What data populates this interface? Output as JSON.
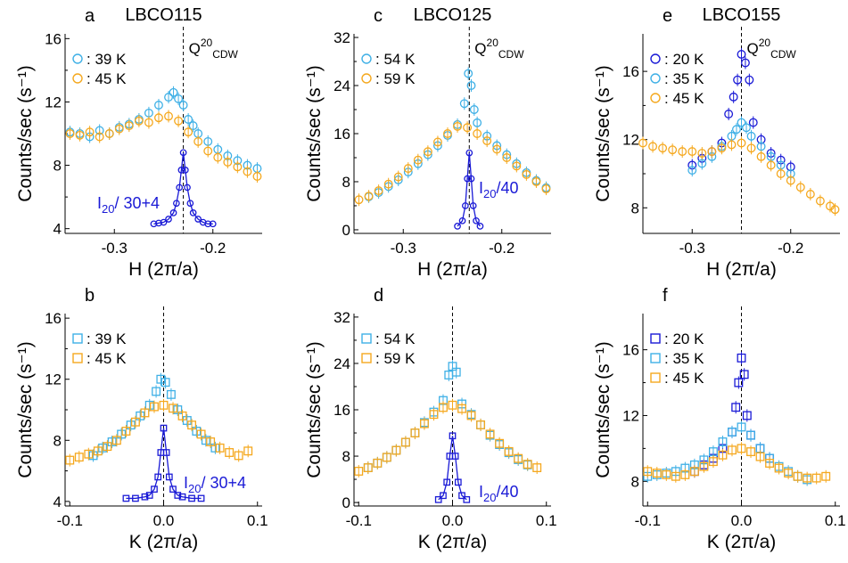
{
  "figure": {
    "panel_letters": [
      "a",
      "b",
      "c",
      "d",
      "e",
      "f"
    ]
  },
  "chart_data": [
    {
      "panel": "a",
      "type": "scatter",
      "title": "LBCO115",
      "xlabel": "H (2π/a)",
      "ylabel": "Counts/sec (s⁻¹)",
      "xlim": [
        -0.35,
        -0.15
      ],
      "ylim": [
        3.7,
        16.3
      ],
      "xticks": [
        -0.3,
        -0.2
      ],
      "xtick_labels": [
        "-0.3",
        "-0.2"
      ],
      "yticks": [
        4,
        8,
        12,
        16
      ],
      "marker": "circle",
      "vline": -0.23,
      "vline_label": "Q20 CDW",
      "fit_label": "I20/ 30+4",
      "series": [
        {
          "name": ": 39 K",
          "color": "#3fb0e6",
          "x": [
            -0.345,
            -0.335,
            -0.325,
            -0.315,
            -0.305,
            -0.295,
            -0.285,
            -0.275,
            -0.265,
            -0.255,
            -0.245,
            -0.24,
            -0.235,
            -0.23,
            -0.225,
            -0.22,
            -0.215,
            -0.205,
            -0.195,
            -0.185,
            -0.175,
            -0.165,
            -0.155
          ],
          "y": [
            10.1,
            10.0,
            9.8,
            10.2,
            10.0,
            10.4,
            10.6,
            10.9,
            11.3,
            11.8,
            12.3,
            12.6,
            12.2,
            11.8,
            10.9,
            10.5,
            10.0,
            9.5,
            9.0,
            8.6,
            8.3,
            8.0,
            7.8
          ]
        },
        {
          "name": ": 45 K",
          "color": "#f5a81e",
          "x": [
            -0.345,
            -0.335,
            -0.325,
            -0.315,
            -0.305,
            -0.295,
            -0.285,
            -0.275,
            -0.265,
            -0.255,
            -0.245,
            -0.235,
            -0.225,
            -0.215,
            -0.205,
            -0.195,
            -0.185,
            -0.175,
            -0.165,
            -0.155
          ],
          "y": [
            10.0,
            9.9,
            10.1,
            9.8,
            10.0,
            10.3,
            10.5,
            10.8,
            10.7,
            11.0,
            11.1,
            10.8,
            10.1,
            9.5,
            8.9,
            8.5,
            8.2,
            7.9,
            7.6,
            7.3
          ]
        },
        {
          "name": "I20/ 30+4",
          "color": "#1a1ad6",
          "x": [
            -0.26,
            -0.255,
            -0.25,
            -0.245,
            -0.24,
            -0.237,
            -0.234,
            -0.232,
            -0.23,
            -0.228,
            -0.226,
            -0.223,
            -0.22,
            -0.215,
            -0.21,
            -0.205,
            -0.2
          ],
          "y": [
            4.3,
            4.35,
            4.4,
            4.6,
            5.0,
            5.6,
            6.6,
            7.7,
            8.8,
            7.7,
            6.6,
            5.6,
            5.0,
            4.6,
            4.4,
            4.3,
            4.3
          ]
        }
      ]
    },
    {
      "panel": "b",
      "type": "scatter",
      "title": "",
      "xlabel": "K (2π/a)",
      "ylabel": "Counts/sec (s⁻¹)",
      "xlim": [
        -0.105,
        0.105
      ],
      "ylim": [
        3.7,
        16.3
      ],
      "xticks": [
        -0.1,
        0.0,
        0.1
      ],
      "xtick_labels": [
        "-0.1",
        "0.0",
        "0.1"
      ],
      "yticks": [
        4,
        8,
        12,
        16
      ],
      "marker": "square",
      "vline": 0.0,
      "vline_label": "",
      "fit_label": "I20/ 30+4",
      "series": [
        {
          "name": ": 39 K",
          "color": "#3fb0e6",
          "x": [
            -0.075,
            -0.065,
            -0.055,
            -0.045,
            -0.035,
            -0.025,
            -0.015,
            -0.008,
            -0.003,
            0.002,
            0.008,
            0.015,
            0.025,
            0.035,
            0.045,
            0.055
          ],
          "y": [
            7.0,
            7.5,
            7.9,
            8.4,
            9.0,
            9.6,
            10.3,
            11.2,
            12.0,
            11.8,
            11.0,
            10.0,
            9.3,
            8.6,
            8.0,
            7.5
          ]
        },
        {
          "name": ": 45 K",
          "color": "#f5a81e",
          "x": [
            -0.1,
            -0.09,
            -0.08,
            -0.07,
            -0.06,
            -0.05,
            -0.04,
            -0.03,
            -0.02,
            -0.01,
            0.0,
            0.01,
            0.02,
            0.03,
            0.04,
            0.05,
            0.06,
            0.07,
            0.08,
            0.09
          ],
          "y": [
            6.7,
            6.9,
            7.1,
            7.3,
            7.6,
            8.0,
            8.6,
            9.2,
            9.8,
            10.2,
            10.3,
            10.1,
            9.6,
            9.0,
            8.4,
            7.9,
            7.5,
            7.2,
            7.0,
            7.3
          ]
        },
        {
          "name": "I20/ 30+4",
          "color": "#1a1ad6",
          "x": [
            -0.04,
            -0.03,
            -0.02,
            -0.015,
            -0.01,
            -0.006,
            -0.003,
            0.0,
            0.003,
            0.006,
            0.01,
            0.015,
            0.02,
            0.03,
            0.04
          ],
          "y": [
            4.2,
            4.2,
            4.3,
            4.4,
            4.8,
            5.6,
            7.2,
            8.8,
            7.2,
            5.6,
            4.8,
            4.4,
            4.3,
            4.2,
            4.2
          ]
        }
      ]
    },
    {
      "panel": "c",
      "type": "scatter",
      "title": "LBCO125",
      "xlabel": "H (2π/a)",
      "ylabel": "Counts/sec (s⁻¹)",
      "xlim": [
        -0.35,
        -0.15
      ],
      "ylim": [
        -0.6,
        32.6
      ],
      "xticks": [
        -0.3,
        -0.2
      ],
      "xtick_labels": [
        "-0.3",
        "-0.2"
      ],
      "yticks": [
        0,
        8,
        16,
        24,
        32
      ],
      "marker": "circle",
      "vline": -0.233,
      "vline_label": "Q20 CDW",
      "fit_label": "I20/40",
      "series": [
        {
          "name": ": 54 K",
          "color": "#3fb0e6",
          "x": [
            -0.335,
            -0.325,
            -0.315,
            -0.305,
            -0.295,
            -0.285,
            -0.275,
            -0.265,
            -0.255,
            -0.245,
            -0.238,
            -0.234,
            -0.231,
            -0.228,
            -0.225,
            -0.215,
            -0.205,
            -0.195,
            -0.185,
            -0.175,
            -0.165,
            -0.155
          ],
          "y": [
            5.5,
            6.2,
            7.2,
            8.3,
            9.6,
            11.0,
            12.5,
            14.0,
            15.7,
            17.5,
            21.0,
            26.0,
            24.0,
            20.0,
            17.8,
            15.6,
            14.0,
            12.5,
            11.0,
            9.5,
            8.2,
            7.0
          ]
        },
        {
          "name": ": 59 K",
          "color": "#f5a81e",
          "x": [
            -0.345,
            -0.335,
            -0.325,
            -0.315,
            -0.305,
            -0.295,
            -0.285,
            -0.275,
            -0.265,
            -0.255,
            -0.245,
            -0.235,
            -0.225,
            -0.215,
            -0.205,
            -0.195,
            -0.185,
            -0.175,
            -0.165,
            -0.155
          ],
          "y": [
            5.0,
            5.6,
            6.5,
            7.6,
            8.8,
            10.2,
            11.6,
            13.0,
            14.6,
            16.0,
            17.2,
            17.0,
            16.0,
            14.8,
            13.4,
            12.0,
            10.6,
            9.2,
            8.0,
            6.8
          ]
        },
        {
          "name": "I20/40",
          "color": "#1a1ad6",
          "x": [
            -0.245,
            -0.24,
            -0.237,
            -0.235,
            -0.233,
            -0.231,
            -0.229,
            -0.226,
            -0.222
          ],
          "y": [
            0.6,
            1.5,
            4.0,
            8.5,
            12.8,
            8.5,
            4.0,
            1.5,
            0.6
          ]
        }
      ]
    },
    {
      "panel": "d",
      "type": "scatter",
      "title": "",
      "xlabel": "K (2π/a)",
      "ylabel": "Counts/sec (s⁻¹)",
      "xlim": [
        -0.105,
        0.105
      ],
      "ylim": [
        -0.6,
        32.6
      ],
      "xticks": [
        -0.1,
        0.0,
        0.1
      ],
      "xtick_labels": [
        "-0.1",
        "0.0",
        "0.1"
      ],
      "yticks": [
        0,
        8,
        16,
        24,
        32
      ],
      "marker": "square",
      "vline": 0.0,
      "vline_label": "",
      "fit_label": "I20/40",
      "series": [
        {
          "name": ": 54 K",
          "color": "#3fb0e6",
          "x": [
            -0.09,
            -0.08,
            -0.07,
            -0.06,
            -0.05,
            -0.04,
            -0.03,
            -0.02,
            -0.01,
            -0.004,
            0.0,
            0.004,
            0.01,
            0.02,
            0.03,
            0.04,
            0.05,
            0.06,
            0.07,
            0.08
          ],
          "y": [
            6.0,
            6.8,
            7.8,
            9.0,
            10.4,
            12.0,
            13.8,
            15.6,
            17.6,
            22.0,
            23.5,
            22.5,
            17.0,
            15.2,
            13.4,
            11.6,
            10.0,
            8.6,
            7.4,
            6.5
          ]
        },
        {
          "name": ": 59 K",
          "color": "#f5a81e",
          "x": [
            -0.1,
            -0.09,
            -0.08,
            -0.07,
            -0.06,
            -0.05,
            -0.04,
            -0.03,
            -0.02,
            -0.01,
            0.0,
            0.01,
            0.02,
            0.03,
            0.04,
            0.05,
            0.06,
            0.07,
            0.08,
            0.09
          ],
          "y": [
            5.4,
            6.0,
            6.8,
            7.8,
            9.0,
            10.4,
            12.0,
            13.6,
            15.2,
            16.4,
            16.8,
            16.2,
            15.0,
            13.4,
            11.8,
            10.2,
            8.8,
            7.6,
            6.6,
            6.0
          ]
        },
        {
          "name": "I20/40",
          "color": "#1a1ad6",
          "x": [
            -0.015,
            -0.01,
            -0.006,
            -0.003,
            0.0,
            0.003,
            0.006,
            0.01,
            0.015
          ],
          "y": [
            0.5,
            1.2,
            3.5,
            8.0,
            11.5,
            8.0,
            3.5,
            1.2,
            0.5
          ]
        }
      ]
    },
    {
      "panel": "e",
      "type": "scatter",
      "title": "LBCO155",
      "xlabel": "H (2π/a)",
      "ylabel": "Counts/sec (s⁻¹)",
      "xlim": [
        -0.35,
        -0.15
      ],
      "ylim": [
        6.5,
        18.2
      ],
      "xticks": [
        -0.3,
        -0.2
      ],
      "xtick_labels": [
        "-0.3",
        "-0.2"
      ],
      "yticks": [
        8,
        12,
        16
      ],
      "marker": "circle",
      "vline": -0.25,
      "vline_label": "Q20 CDW",
      "fit_label": "",
      "series": [
        {
          "name": ": 20 K",
          "color": "#1a1ad6",
          "x": [
            -0.3,
            -0.29,
            -0.28,
            -0.27,
            -0.263,
            -0.258,
            -0.254,
            -0.25,
            -0.246,
            -0.242,
            -0.238,
            -0.23,
            -0.22,
            -0.21,
            -0.2
          ],
          "y": [
            10.5,
            10.9,
            11.3,
            11.8,
            13.5,
            14.5,
            15.5,
            17.0,
            16.5,
            15.5,
            13.0,
            12.0,
            11.2,
            10.8,
            10.4
          ]
        },
        {
          "name": ": 35 K",
          "color": "#3fb0e6",
          "x": [
            -0.3,
            -0.29,
            -0.28,
            -0.27,
            -0.26,
            -0.255,
            -0.25,
            -0.245,
            -0.24,
            -0.23,
            -0.22,
            -0.21,
            -0.2
          ],
          "y": [
            10.2,
            10.6,
            11.0,
            11.6,
            12.2,
            12.6,
            13.0,
            12.7,
            12.2,
            11.6,
            11.0,
            10.5,
            10.0
          ]
        },
        {
          "name": ": 45 K",
          "color": "#f5a81e",
          "x": [
            -0.35,
            -0.34,
            -0.33,
            -0.32,
            -0.31,
            -0.3,
            -0.29,
            -0.28,
            -0.27,
            -0.26,
            -0.25,
            -0.24,
            -0.23,
            -0.22,
            -0.21,
            -0.2,
            -0.19,
            -0.18,
            -0.17,
            -0.16,
            -0.155
          ],
          "y": [
            11.8,
            11.6,
            11.5,
            11.4,
            11.3,
            11.3,
            11.2,
            11.3,
            11.5,
            11.7,
            11.8,
            11.5,
            11.0,
            10.5,
            10.0,
            9.6,
            9.2,
            8.8,
            8.4,
            8.1,
            7.9
          ]
        }
      ]
    },
    {
      "panel": "f",
      "type": "scatter",
      "title": "",
      "xlabel": "K (2π/a)",
      "ylabel": "Counts/sec (s⁻¹)",
      "xlim": [
        -0.105,
        0.105
      ],
      "ylim": [
        6.5,
        18.2
      ],
      "xticks": [
        -0.1,
        0.0,
        0.1
      ],
      "xtick_labels": [
        "-0.1",
        "0.0",
        "0.1"
      ],
      "yticks": [
        8,
        12,
        16
      ],
      "marker": "square",
      "vline": 0.0,
      "vline_label": "",
      "fit_label": "",
      "series": [
        {
          "name": ": 20 K",
          "color": "#1a1ad6",
          "x": [
            -0.05,
            -0.04,
            -0.03,
            -0.02,
            -0.01,
            -0.006,
            -0.003,
            0.0,
            0.003,
            0.006,
            0.01,
            0.02,
            0.03
          ],
          "y": [
            8.6,
            9.0,
            9.4,
            10.0,
            11.0,
            12.5,
            14.0,
            15.5,
            14.5,
            12.0,
            10.8,
            10.0,
            9.4
          ]
        },
        {
          "name": ": 35 K",
          "color": "#3fb0e6",
          "x": [
            -0.1,
            -0.09,
            -0.08,
            -0.07,
            -0.06,
            -0.05,
            -0.04,
            -0.03,
            -0.02,
            -0.01,
            0.0,
            0.01,
            0.02,
            0.03,
            0.04,
            0.05,
            0.06,
            0.07
          ],
          "y": [
            8.3,
            8.4,
            8.5,
            8.6,
            8.8,
            9.0,
            9.3,
            9.8,
            10.4,
            11.0,
            11.3,
            10.8,
            10.0,
            9.4,
            8.9,
            8.6,
            8.3,
            8.1
          ]
        },
        {
          "name": ": 45 K",
          "color": "#f5a81e",
          "x": [
            -0.1,
            -0.09,
            -0.08,
            -0.07,
            -0.06,
            -0.05,
            -0.04,
            -0.03,
            -0.02,
            -0.01,
            0.0,
            0.01,
            0.02,
            0.03,
            0.04,
            0.05,
            0.06,
            0.07,
            0.08,
            0.09
          ],
          "y": [
            8.6,
            8.5,
            8.4,
            8.3,
            8.4,
            8.6,
            8.9,
            9.2,
            9.6,
            9.9,
            10.0,
            9.8,
            9.5,
            9.1,
            8.8,
            8.5,
            8.3,
            8.2,
            8.2,
            8.3
          ]
        }
      ]
    }
  ]
}
